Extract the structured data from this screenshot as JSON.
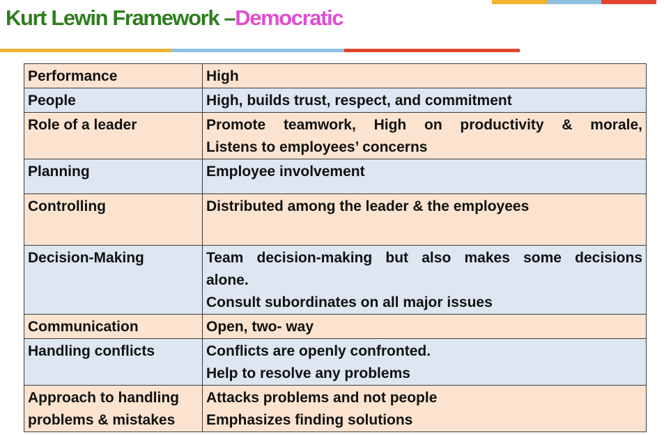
{
  "header": {
    "title_main": "Kurt Lewin Framework",
    "title_dash": "–",
    "title_accent": "Democratic"
  },
  "colors": {
    "title_green": "#2f7d1f",
    "title_pink": "#e04ecf",
    "rule_orange": "#f2b233",
    "rule_blue": "#8ec2e3",
    "rule_red": "#e2452f",
    "row_peach": "#fbe3cf",
    "row_blue": "#dde6f1"
  },
  "table": {
    "rows": [
      {
        "label": "Performance",
        "lines": [
          "High"
        ]
      },
      {
        "label": "People",
        "lines": [
          "High, builds trust, respect, and commitment"
        ]
      },
      {
        "label": "Role of a leader",
        "lines": [
          "Promote teamwork, High on productivity & morale,",
          "Listens to employees’ concerns"
        ]
      },
      {
        "label": "Planning",
        "lines": [
          "Employee involvement"
        ]
      },
      {
        "label": "Controlling",
        "lines": [
          "Distributed among the leader & the employees"
        ]
      },
      {
        "label": "Decision-Making",
        "lines": [
          "Team decision-making but also makes some decisions",
          "alone.",
          "Consult subordinates on all major issues"
        ]
      },
      {
        "label": "Communication",
        "lines": [
          "Open, two- way"
        ]
      },
      {
        "label": "Handling conflicts",
        "lines": [
          "Conflicts are openly confronted.",
          "Help to resolve any problems"
        ]
      },
      {
        "label_lines": [
          "Approach to handling",
          "problems & mistakes"
        ],
        "lines": [
          "Attacks problems and not people",
          "Emphasizes finding solutions"
        ]
      }
    ]
  }
}
